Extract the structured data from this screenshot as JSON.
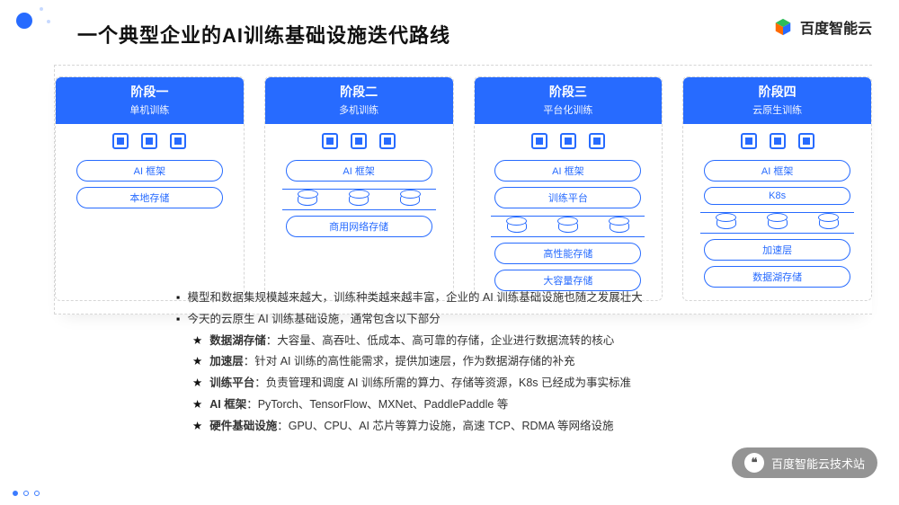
{
  "colors": {
    "accent": "#276bff",
    "text": "#333333",
    "title": "#111111",
    "dashed_border": "#d6d6d6",
    "background": "#ffffff"
  },
  "typography": {
    "title_fontsize": 22,
    "stage_title_fontsize": 14,
    "stage_sub_fontsize": 11,
    "pill_fontsize": 11,
    "bullet_fontsize": 12.5
  },
  "title": "一个典型企业的AI训练基础设施迭代路线",
  "brand_text": "百度智能云",
  "stages": [
    {
      "title": "阶段一",
      "sub": "单机训练",
      "layers": [
        "AI 框架",
        "本地存储"
      ],
      "has_storage_row": false
    },
    {
      "title": "阶段二",
      "sub": "多机训练",
      "layers": [
        "AI 框架"
      ],
      "storage_row_label": "商用网络存储"
    },
    {
      "title": "阶段三",
      "sub": "平台化训练",
      "layers": [
        "AI 框架",
        "训练平台"
      ],
      "storage_after": [
        "高性能存储",
        "大容量存储"
      ]
    },
    {
      "title": "阶段四",
      "sub": "云原生训练",
      "layers": [
        "AI 框架",
        "K8s"
      ],
      "storage_after": [
        "加速层",
        "数据湖存储"
      ]
    }
  ],
  "bullets_primary": [
    "模型和数据集规模越来越大，训练种类越来越丰富，企业的 AI 训练基础设施也随之发展壮大",
    "今天的云原生 AI 训练基础设施，通常包含以下部分"
  ],
  "bullets_sub": [
    {
      "term": "数据湖存储",
      "desc": "：大容量、高吞吐、低成本、高可靠的存储，企业进行数据流转的核心"
    },
    {
      "term": "加速层",
      "desc": "：针对 AI 训练的高性能需求，提供加速层，作为数据湖存储的补充"
    },
    {
      "term": "训练平台",
      "desc": "：负责管理和调度 AI 训练所需的算力、存储等资源，K8s 已经成为事实标准"
    },
    {
      "term": "AI 框架",
      "desc": "：PyTorch、TensorFlow、MXNet、PaddlePaddle 等"
    },
    {
      "term": "硬件基础设施",
      "desc": "：GPU、CPU、AI 芯片等算力设施，高速 TCP、RDMA 等网络设施"
    }
  ],
  "footer_badge": "百度智能云技术站",
  "pager": {
    "total": 3,
    "active": 0
  }
}
